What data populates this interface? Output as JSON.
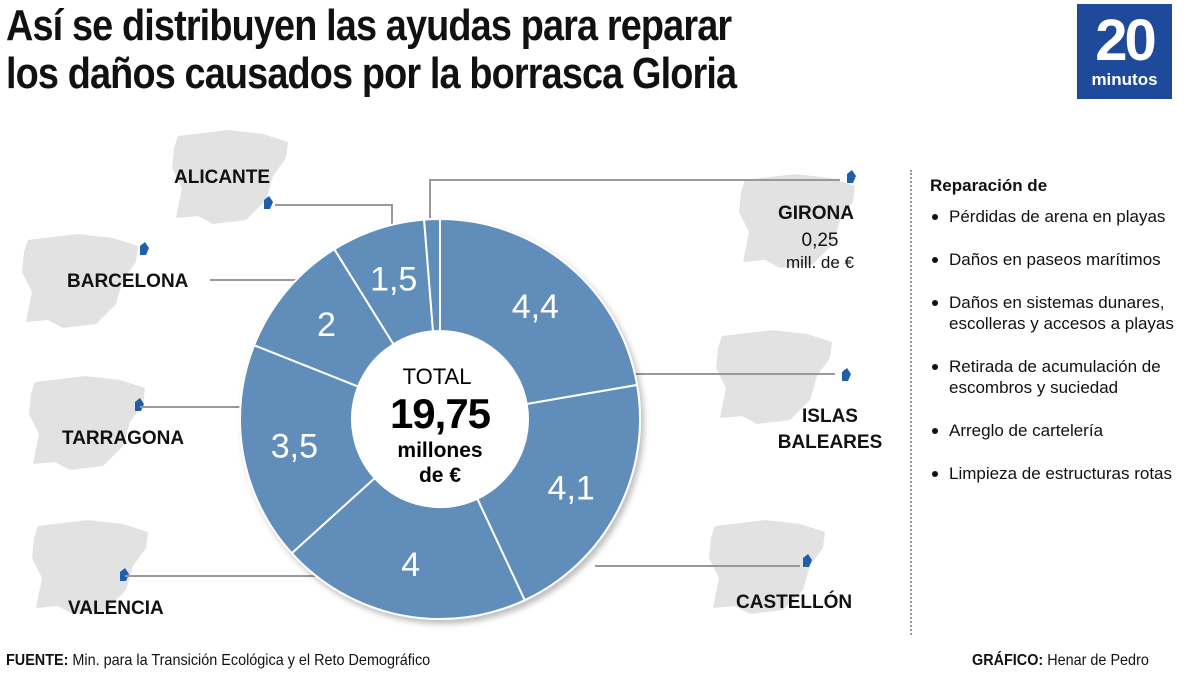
{
  "header": {
    "title_line1": "Así se distribuyen las ayudas para reparar",
    "title_line2": "los daños causados por la borrasca Gloria",
    "logo_number": "20",
    "logo_word": "minutos"
  },
  "colors": {
    "slice": "#618db9",
    "map": "#e2e2e2",
    "highlight": "#1f5fa8",
    "logo": "#1f4a9c"
  },
  "chart_data": {
    "type": "pie",
    "subtype": "donut",
    "title": "Así se distribuyen las ayudas para reparar los daños causados por la borrasca Gloria",
    "unit": "millones de €",
    "center": {
      "label": "TOTAL",
      "value": "19,75",
      "unit_line1": "millones",
      "unit_line2": "de €"
    },
    "slices": [
      {
        "region": "ISLAS BALEARES",
        "value": 4.4,
        "label": "4,4"
      },
      {
        "region": "CASTELLÓN",
        "value": 4.1,
        "label": "4,1"
      },
      {
        "region": "VALENCIA",
        "value": 4.0,
        "label": "4"
      },
      {
        "region": "TARRAGONA",
        "value": 3.5,
        "label": "3,5"
      },
      {
        "region": "BARCELONA",
        "value": 2.0,
        "label": "2"
      },
      {
        "region": "ALICANTE",
        "value": 1.5,
        "label": "1,5"
      },
      {
        "region": "GIRONA",
        "value": 0.25,
        "label": ""
      }
    ],
    "girona_note": {
      "value": "0,25",
      "unit": "mill. de €"
    }
  },
  "legend": {
    "title": "Reparación de",
    "items": [
      "Pérdidas de arena en playas",
      "Daños en paseos marítimos",
      "Daños en sistemas dunares, escolleras y accesos a playas",
      "Retirada de acumulación de escombros y suciedad",
      "Arreglo de cartelería",
      "Limpieza de estructuras rotas"
    ]
  },
  "footer": {
    "source_label": "FUENTE:",
    "source": "Min. para la Transición Ecológica y el Reto Demográfico",
    "credit_label": "GRÁFICO:",
    "credit": "Henar de Pedro"
  }
}
